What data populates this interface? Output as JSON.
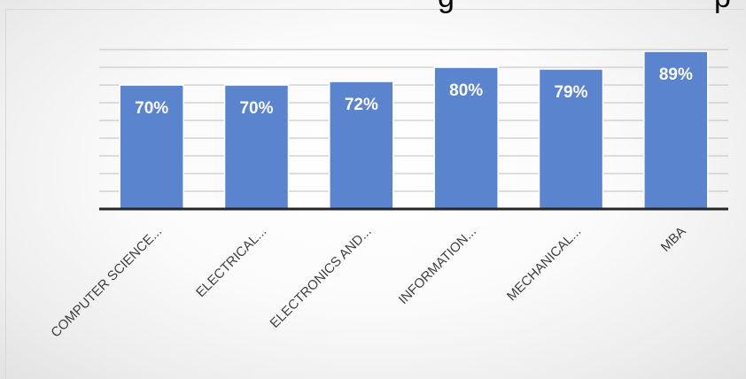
{
  "chart_data": {
    "type": "bar",
    "title_fragment": "g",
    "title_fragment_right": "p",
    "categories": [
      "COMPUTER SCIENCE...",
      "ELECTRICAL...",
      "ELECTRONICS AND...",
      "INFORMATION...",
      "MECHANICAL...",
      "MBA"
    ],
    "values": [
      70,
      70,
      72,
      80,
      79,
      89
    ],
    "data_labels": [
      "70%",
      "70%",
      "72%",
      "80%",
      "79%",
      "89%"
    ],
    "unit": "%",
    "ylim": [
      0,
      90
    ],
    "gridlines": true,
    "legend": "none",
    "bar_color": "#5b84cf",
    "bar_edge_color": "#ffffff",
    "axis_color": "#262626",
    "grid_color": "#bfbfbf"
  }
}
